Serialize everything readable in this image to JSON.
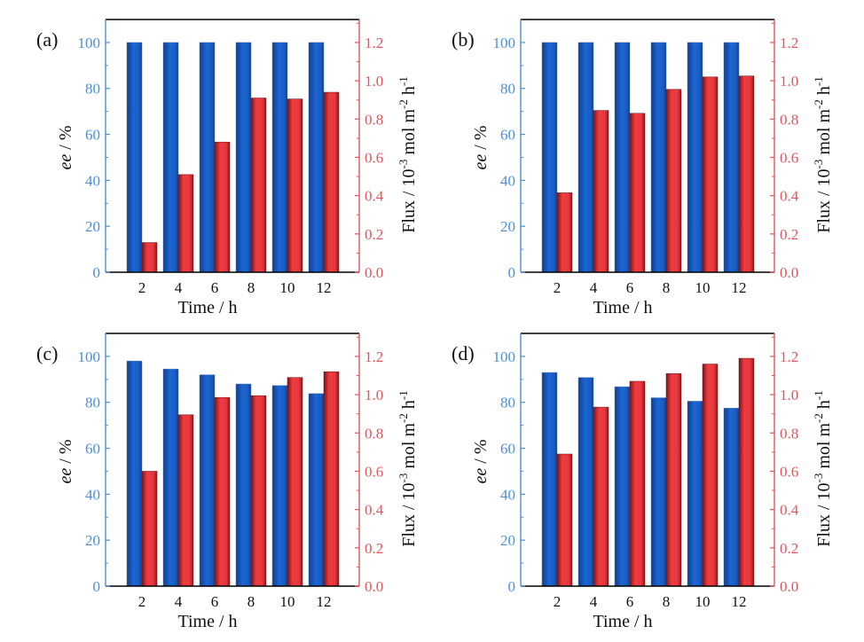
{
  "colors": {
    "ee_bar": "#1a5fc8",
    "ee_bar_dark": "#0d3f8f",
    "flux_bar": "#e8383d",
    "flux_bar_dark": "#8e1a1d",
    "left_axis": "#4a90d9",
    "right_axis": "#e8525a",
    "frame": "#000000"
  },
  "chart_data": [
    {
      "type": "bar",
      "panel_label": "(a)",
      "categories": [
        "2",
        "4",
        "6",
        "8",
        "10",
        "12"
      ],
      "xlabel": "Time / h",
      "ylabel": "ee / %",
      "ylabel_parts": {
        "italic": "ee",
        "rest": " / %"
      },
      "y2label_parts": {
        "base": "Flux / 10",
        "sup1": "-3",
        "mid": " mol m",
        "sup2": "-2",
        "mid2": " h",
        "sup3": "-1"
      },
      "ylim": [
        0,
        110
      ],
      "y2lim": [
        0,
        1.32
      ],
      "yticks": [
        "0",
        "20",
        "40",
        "60",
        "80",
        "100"
      ],
      "y2ticks": [
        "0.0",
        "0.2",
        "0.4",
        "0.6",
        "0.8",
        "1.0",
        "1.2"
      ],
      "series": [
        {
          "name": "ee",
          "axis": "left",
          "values": [
            100,
            100,
            100,
            100,
            100,
            100
          ]
        },
        {
          "name": "Flux",
          "axis": "right",
          "values": [
            0.155,
            0.51,
            0.68,
            0.91,
            0.905,
            0.94
          ]
        }
      ],
      "grid": false
    },
    {
      "type": "bar",
      "panel_label": "(b)",
      "categories": [
        "2",
        "4",
        "6",
        "8",
        "10",
        "12"
      ],
      "xlabel": "Time / h",
      "ylabel": "ee / %",
      "ylabel_parts": {
        "italic": "ee",
        "rest": " / %"
      },
      "y2label_parts": {
        "base": "Flux / 10",
        "sup1": "-3",
        "mid": " mol m",
        "sup2": "-2",
        "mid2": " h",
        "sup3": "-1"
      },
      "ylim": [
        0,
        110
      ],
      "y2lim": [
        0,
        1.32
      ],
      "yticks": [
        "0",
        "20",
        "40",
        "60",
        "80",
        "100"
      ],
      "y2ticks": [
        "0.0",
        "0.2",
        "0.4",
        "0.6",
        "0.8",
        "1.0",
        "1.2"
      ],
      "series": [
        {
          "name": "ee",
          "axis": "left",
          "values": [
            100,
            100,
            100,
            100,
            100,
            100
          ]
        },
        {
          "name": "Flux",
          "axis": "right",
          "values": [
            0.415,
            0.845,
            0.83,
            0.955,
            1.02,
            1.025
          ]
        }
      ],
      "grid": false
    },
    {
      "type": "bar",
      "panel_label": "(c)",
      "categories": [
        "2",
        "4",
        "6",
        "8",
        "10",
        "12"
      ],
      "xlabel": "Time / h",
      "ylabel": "ee / %",
      "ylabel_parts": {
        "italic": "ee",
        "rest": " / %"
      },
      "y2label_parts": {
        "base": "Flux / 10",
        "sup1": "-3",
        "mid": " mol m",
        "sup2": "-2",
        "mid2": " h",
        "sup3": "-1"
      },
      "ylim": [
        0,
        110
      ],
      "y2lim": [
        0,
        1.32
      ],
      "yticks": [
        "0",
        "20",
        "40",
        "60",
        "80",
        "100"
      ],
      "y2ticks": [
        "0.0",
        "0.2",
        "0.4",
        "0.6",
        "0.8",
        "1.0",
        "1.2"
      ],
      "series": [
        {
          "name": "ee",
          "axis": "left",
          "values": [
            98,
            94.5,
            92,
            88,
            87.3,
            83.8
          ]
        },
        {
          "name": "Flux",
          "axis": "right",
          "values": [
            0.6,
            0.895,
            0.985,
            0.995,
            1.09,
            1.12
          ]
        }
      ],
      "grid": false
    },
    {
      "type": "bar",
      "panel_label": "(d)",
      "categories": [
        "2",
        "4",
        "6",
        "8",
        "10",
        "12"
      ],
      "xlabel": "Time / h",
      "ylabel": "ee / %",
      "ylabel_parts": {
        "italic": "ee",
        "rest": " / %"
      },
      "y2label_parts": {
        "base": "Flux / 10",
        "sup1": "-3",
        "mid": " mol m",
        "sup2": "-2",
        "mid2": " h",
        "sup3": "-1"
      },
      "ylim": [
        0,
        110
      ],
      "y2lim": [
        0,
        1.32
      ],
      "yticks": [
        "0",
        "20",
        "40",
        "60",
        "80",
        "100"
      ],
      "y2ticks": [
        "0.0",
        "0.2",
        "0.4",
        "0.6",
        "0.8",
        "1.0",
        "1.2"
      ],
      "series": [
        {
          "name": "ee",
          "axis": "left",
          "values": [
            93,
            90.8,
            86.8,
            82,
            80.5,
            77.5
          ]
        },
        {
          "name": "Flux",
          "axis": "right",
          "values": [
            0.69,
            0.935,
            1.07,
            1.11,
            1.16,
            1.19
          ]
        }
      ],
      "grid": false
    }
  ]
}
